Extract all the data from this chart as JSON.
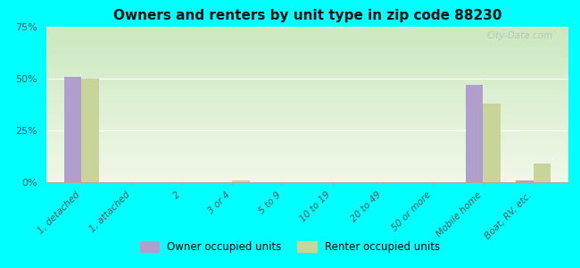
{
  "title": "Owners and renters by unit type in zip code 88230",
  "categories": [
    "1, detached",
    "1, attached",
    "2",
    "3 or 4",
    "5 to 9",
    "10 to 19",
    "20 to 49",
    "50 or more",
    "Mobile home",
    "Boat, RV, etc."
  ],
  "owner_values": [
    51,
    0,
    0,
    0,
    0,
    0,
    0,
    0,
    47,
    1
  ],
  "renter_values": [
    50,
    0,
    0,
    1,
    0,
    0,
    0,
    0,
    38,
    9
  ],
  "owner_color": "#b09fcc",
  "renter_color": "#c8d49a",
  "ylim": [
    0,
    75
  ],
  "yticks": [
    0,
    25,
    50,
    75
  ],
  "ytick_labels": [
    "0%",
    "25%",
    "50%",
    "75%"
  ],
  "bar_width": 0.35,
  "legend_owner": "Owner occupied units",
  "legend_renter": "Renter occupied units",
  "bg_color": "#00ffff",
  "watermark": "City-Data.com"
}
